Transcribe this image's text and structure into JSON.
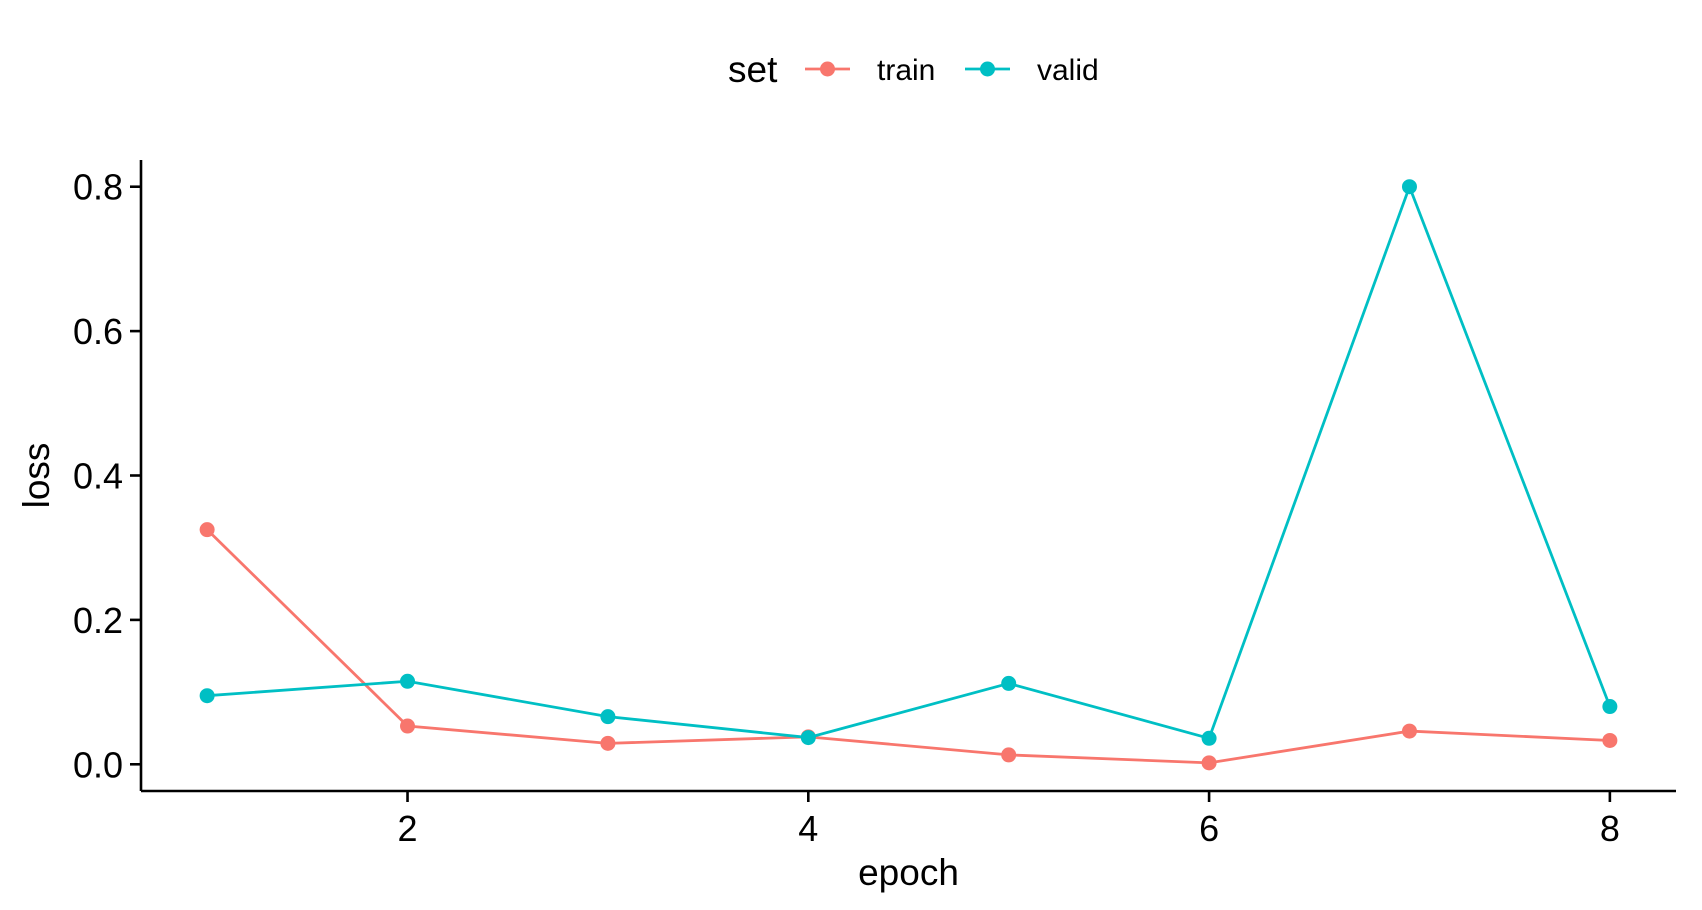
{
  "chart_data": {
    "type": "line",
    "xlabel": "epoch",
    "ylabel": "loss",
    "x": [
      1,
      2,
      3,
      4,
      5,
      6,
      7,
      8
    ],
    "xlim": [
      0.67,
      8.33
    ],
    "ylim": [
      -0.037,
      0.837
    ],
    "x_ticks": [
      2,
      4,
      6,
      8
    ],
    "x_tick_labels": [
      "2",
      "4",
      "6",
      "8"
    ],
    "y_ticks": [
      0,
      0.2,
      0.4,
      0.6,
      0.8
    ],
    "y_tick_labels": [
      "0.0",
      "0.2",
      "0.4",
      "0.6",
      "0.8"
    ],
    "grid": false,
    "legend": {
      "title": "set",
      "position": "top"
    },
    "series": [
      {
        "name": "train",
        "color": "#F8766D",
        "values": [
          0.325,
          0.053,
          0.029,
          0.038,
          0.013,
          0.002,
          0.046,
          0.033
        ]
      },
      {
        "name": "valid",
        "color": "#00BFC4",
        "values": [
          0.095,
          0.115,
          0.066,
          0.037,
          0.112,
          0.036,
          0.8,
          0.08
        ]
      }
    ]
  }
}
